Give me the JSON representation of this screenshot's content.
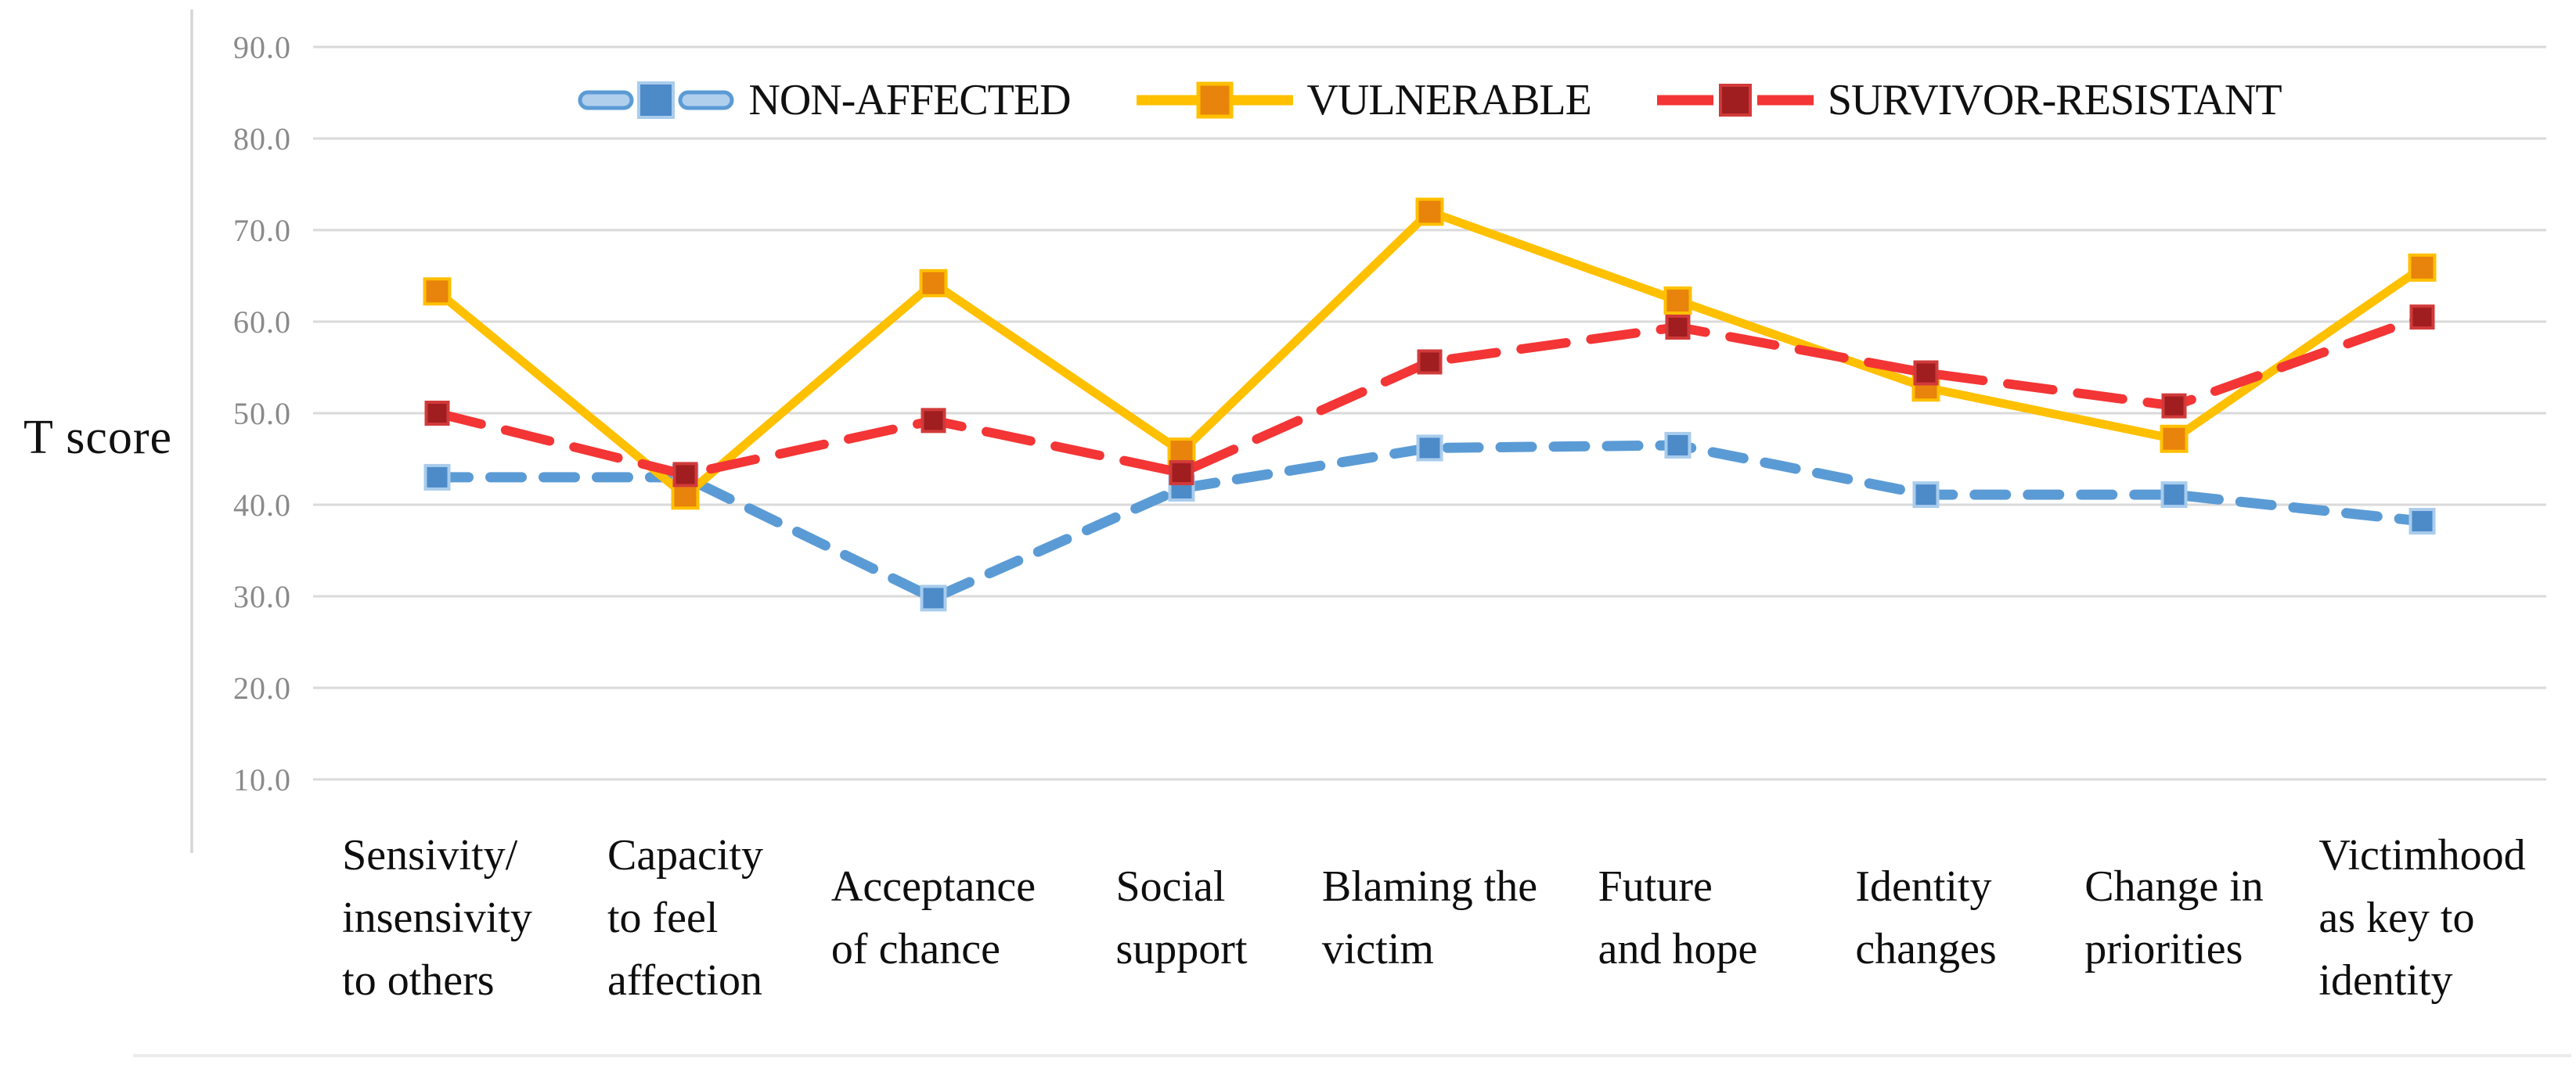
{
  "chart_data": {
    "type": "line",
    "title": "",
    "ylabel": "T score",
    "xlabel": "",
    "categories": [
      "Sensivity/ insensivity to others",
      "Capacity to feel affection",
      "Acceptance of chance",
      "Social support",
      "Blaming the victim",
      "Future and hope",
      "Identity changes",
      "Change in priorities",
      "Victimhood as key to identity"
    ],
    "category_label_lines": [
      [
        "Sensivity/",
        "insensivity",
        "to others"
      ],
      [
        "Capacity",
        "to feel",
        "affection"
      ],
      [
        "Acceptance",
        "of chance"
      ],
      [
        "Social",
        "support"
      ],
      [
        "Blaming the",
        "victim"
      ],
      [
        "Future",
        "and hope"
      ],
      [
        "Identity",
        "changes"
      ],
      [
        "Change in",
        "priorities"
      ],
      [
        "Victimhood",
        "as key to",
        "identity"
      ]
    ],
    "y_axis": {
      "tick_labels": [
        "90.0",
        "80.0",
        "70.0",
        "60.0",
        "50.0",
        "40.0",
        "30.0",
        "20.0",
        "10.0"
      ],
      "tick_values": [
        90,
        80,
        70,
        60,
        50,
        40,
        30,
        20,
        10
      ],
      "tick_color": "#8a8a8a"
    },
    "ylim": [
      10,
      90
    ],
    "grid": true,
    "legend_position": "top",
    "series": [
      {
        "name": "NON-AFFECTED",
        "style": "dashed",
        "line_color": "#5B9BD5",
        "marker_color": "#4D8AC8",
        "marker_edge": "#A9CCEC",
        "values": [
          43,
          43,
          29.8,
          41.8,
          46.2,
          46.5,
          41.1,
          41.1,
          38.2
        ]
      },
      {
        "name": "VULNERABLE",
        "style": "solid",
        "line_color": "#FFC000",
        "marker_color": "#E8830C",
        "marker_edge": "#FFC000",
        "values": [
          63.3,
          41,
          64.2,
          45.8,
          72,
          62.3,
          52.8,
          47.2,
          65.9
        ]
      },
      {
        "name": "SURVIVOR-RESISTANT",
        "style": "dashed",
        "line_color": "#F33535",
        "marker_color": "#A01D20",
        "marker_edge": "#D13A3A",
        "values": [
          50,
          43.3,
          49.2,
          43.5,
          55.6,
          59.4,
          54.4,
          50.8,
          60.5
        ]
      }
    ],
    "colors": {
      "gridline": "#DADADA",
      "axis_line": "#D6D6D6",
      "bottom_border": "#ECECEC",
      "text": "#101010"
    }
  }
}
